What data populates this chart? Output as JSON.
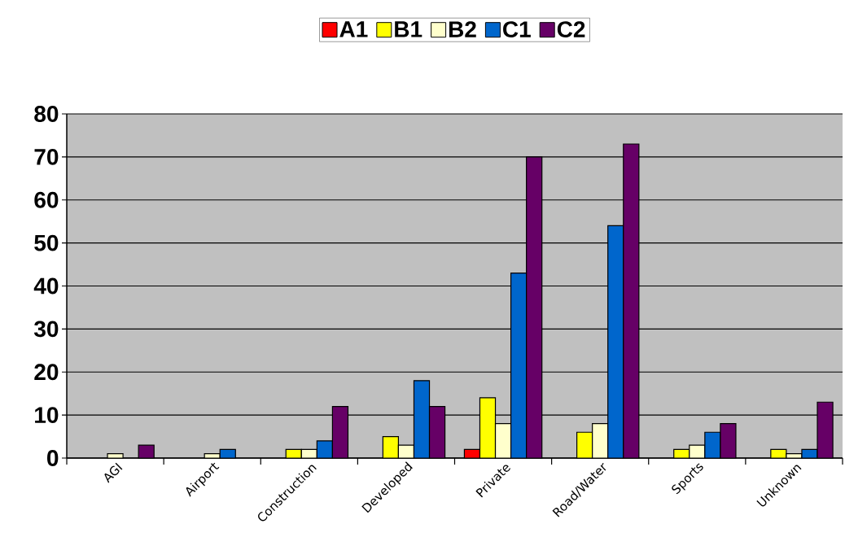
{
  "chart_data": {
    "type": "bar",
    "categories": [
      "AGI",
      "Airport",
      "Construction",
      "Developed",
      "Private",
      "Road/Water",
      "Sports",
      "Unknown"
    ],
    "series": [
      {
        "name": "A1",
        "color": "#ff0000",
        "values": [
          0,
          0,
          0,
          0,
          2,
          0,
          0,
          0
        ]
      },
      {
        "name": "B1",
        "color": "#ffff00",
        "values": [
          0,
          0,
          2,
          5,
          14,
          6,
          2,
          2
        ]
      },
      {
        "name": "B2",
        "color": "#ffffcc",
        "values": [
          1,
          1,
          2,
          3,
          8,
          8,
          3,
          1
        ]
      },
      {
        "name": "C1",
        "color": "#0066cc",
        "values": [
          0,
          2,
          4,
          18,
          43,
          54,
          6,
          2
        ]
      },
      {
        "name": "C2",
        "color": "#660066",
        "values": [
          3,
          0,
          12,
          12,
          70,
          73,
          8,
          13
        ]
      }
    ],
    "ylim": [
      0,
      80
    ],
    "yticks": [
      0,
      10,
      20,
      30,
      40,
      50,
      60,
      70,
      80
    ],
    "grid": "y",
    "legend": "top"
  }
}
